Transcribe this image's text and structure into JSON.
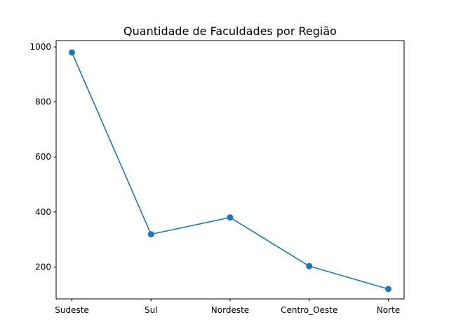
{
  "chart_data": {
    "type": "line",
    "title": "Quantidade de Faculdades por Região",
    "xlabel": "",
    "ylabel": "",
    "categories": [
      "Sudeste",
      "Sul",
      "Nordeste",
      "Centro_Oeste",
      "Norte"
    ],
    "series": [
      {
        "values": [
          980,
          319,
          380,
          203,
          120
        ]
      }
    ],
    "yticks": [
      200,
      400,
      600,
      800,
      1000
    ],
    "ylim": [
      84,
      1023
    ],
    "grid": false,
    "legend": false,
    "color": "#1f77b4"
  }
}
